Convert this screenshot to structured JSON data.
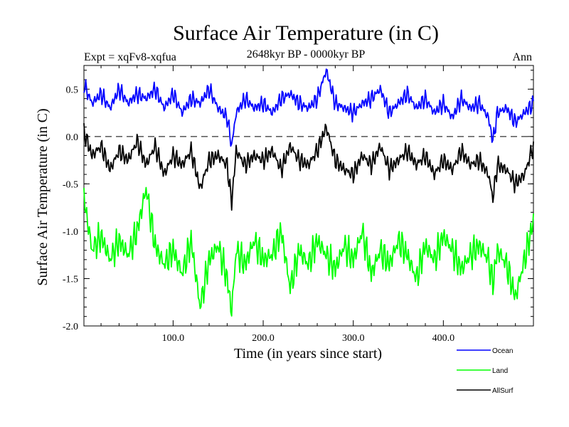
{
  "chart_data": {
    "type": "line",
    "title": "Surface Air Temperature (in C)",
    "subtitle_left": "Expt = xqFv8-xqfua",
    "subtitle_center": "2648kyr BP - 0000kyr BP",
    "subtitle_right": "Ann",
    "xlabel": "Time (in years since start)",
    "ylabel": "Surface Air Temperature (in C)",
    "xlim": [
      1,
      500
    ],
    "ylim": [
      -2.0,
      0.75
    ],
    "xticks": [
      {
        "value": 100,
        "label": "100.0"
      },
      {
        "value": 200,
        "label": "200.0"
      },
      {
        "value": 300,
        "label": "300.0"
      },
      {
        "value": 400,
        "label": "400.0"
      }
    ],
    "yticks": [
      {
        "value": 0.5,
        "label": "0.5"
      },
      {
        "value": 0.0,
        "label": "0.0"
      },
      {
        "value": -0.5,
        "label": "-0.5"
      },
      {
        "value": -1.0,
        "label": "-1.0"
      },
      {
        "value": -1.5,
        "label": "-1.5"
      },
      {
        "value": -2.0,
        "label": "-2.0"
      }
    ],
    "reference_line": 0.0,
    "series": [
      {
        "name": "Ocean",
        "color": "#0000ff",
        "x": [
          1,
          10,
          20,
          30,
          40,
          50,
          60,
          70,
          80,
          90,
          100,
          110,
          120,
          130,
          140,
          150,
          160,
          165,
          170,
          180,
          190,
          200,
          210,
          220,
          230,
          240,
          250,
          260,
          270,
          280,
          290,
          300,
          310,
          320,
          330,
          340,
          350,
          360,
          370,
          380,
          390,
          400,
          410,
          420,
          430,
          440,
          450,
          455,
          460,
          470,
          480,
          490,
          500
        ],
        "values": [
          0.55,
          0.35,
          0.45,
          0.3,
          0.5,
          0.35,
          0.45,
          0.4,
          0.5,
          0.3,
          0.45,
          0.25,
          0.4,
          0.35,
          0.5,
          0.3,
          0.2,
          -0.1,
          0.25,
          0.4,
          0.3,
          0.35,
          0.25,
          0.4,
          0.45,
          0.35,
          0.3,
          0.4,
          0.7,
          0.35,
          0.3,
          0.25,
          0.35,
          0.4,
          0.5,
          0.25,
          0.35,
          0.45,
          0.3,
          0.4,
          0.25,
          0.35,
          0.2,
          0.4,
          0.3,
          0.35,
          0.2,
          -0.05,
          0.25,
          0.3,
          0.15,
          0.25,
          0.35
        ]
      },
      {
        "name": "Land",
        "color": "#00ff00",
        "x": [
          1,
          10,
          20,
          30,
          40,
          50,
          60,
          70,
          80,
          90,
          100,
          110,
          120,
          130,
          140,
          150,
          160,
          165,
          170,
          180,
          190,
          200,
          210,
          220,
          230,
          240,
          250,
          260,
          270,
          280,
          290,
          300,
          310,
          320,
          330,
          340,
          350,
          360,
          370,
          380,
          390,
          400,
          410,
          420,
          430,
          440,
          450,
          455,
          460,
          470,
          480,
          490,
          500
        ],
        "values": [
          -0.65,
          -1.2,
          -1.05,
          -1.3,
          -1.1,
          -1.25,
          -1.0,
          -0.55,
          -1.15,
          -1.35,
          -1.2,
          -1.45,
          -1.1,
          -1.8,
          -1.3,
          -1.15,
          -1.5,
          -1.85,
          -1.2,
          -1.35,
          -1.1,
          -1.3,
          -1.25,
          -1.0,
          -1.6,
          -1.2,
          -1.35,
          -1.1,
          -1.25,
          -1.4,
          -1.15,
          -1.3,
          -1.0,
          -1.45,
          -1.2,
          -1.35,
          -1.1,
          -1.25,
          -1.5,
          -1.15,
          -1.3,
          -1.05,
          -1.2,
          -1.4,
          -1.25,
          -1.15,
          -1.3,
          -1.55,
          -1.2,
          -1.35,
          -1.7,
          -1.3,
          -0.9
        ]
      },
      {
        "name": "AllSurf",
        "color": "#000000",
        "x": [
          1,
          10,
          20,
          30,
          40,
          50,
          60,
          70,
          80,
          90,
          100,
          110,
          120,
          130,
          140,
          150,
          160,
          165,
          170,
          180,
          190,
          200,
          210,
          220,
          230,
          240,
          250,
          260,
          270,
          280,
          290,
          300,
          310,
          320,
          330,
          340,
          350,
          360,
          370,
          380,
          390,
          400,
          410,
          420,
          430,
          440,
          450,
          455,
          460,
          470,
          480,
          490,
          500
        ],
        "values": [
          0.05,
          -0.2,
          -0.1,
          -0.35,
          -0.15,
          -0.25,
          -0.05,
          -0.3,
          -0.1,
          -0.4,
          -0.2,
          -0.3,
          -0.15,
          -0.55,
          -0.25,
          -0.2,
          -0.3,
          -0.7,
          -0.15,
          -0.3,
          -0.2,
          -0.25,
          -0.15,
          -0.35,
          -0.1,
          -0.25,
          -0.3,
          -0.15,
          0.1,
          -0.25,
          -0.35,
          -0.4,
          -0.2,
          -0.3,
          -0.1,
          -0.35,
          -0.25,
          -0.15,
          -0.3,
          -0.2,
          -0.4,
          -0.25,
          -0.35,
          -0.15,
          -0.3,
          -0.25,
          -0.4,
          -0.65,
          -0.3,
          -0.35,
          -0.5,
          -0.4,
          -0.1
        ]
      }
    ]
  }
}
